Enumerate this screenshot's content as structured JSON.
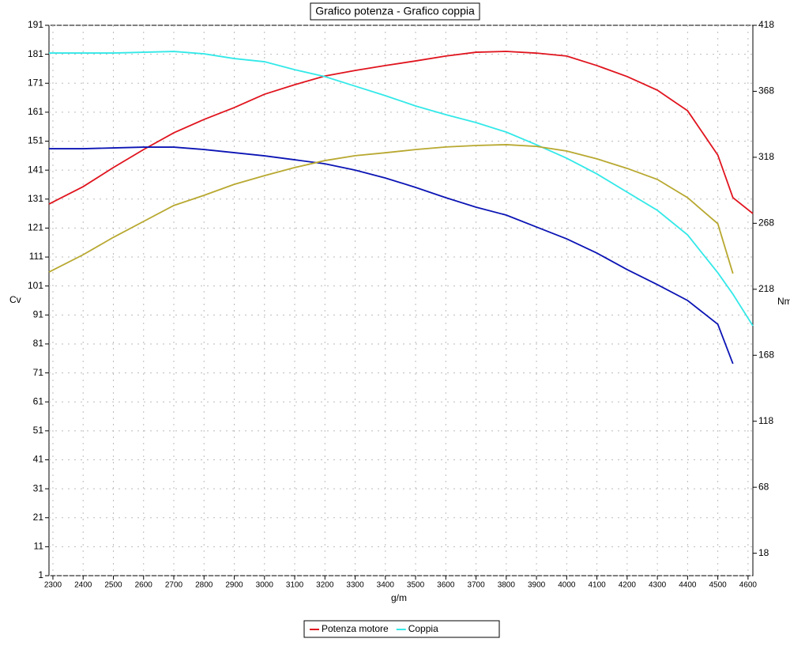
{
  "chart_data": {
    "type": "line",
    "title": "Grafico potenza - Grafico coppia",
    "xlabel": "g/m",
    "ylabel": "Cv",
    "y2label": "Nm",
    "x": [
      2287,
      2400,
      2500,
      2600,
      2700,
      2800,
      2900,
      3000,
      3100,
      3200,
      3300,
      3400,
      3500,
      3600,
      3700,
      3800,
      3900,
      4000,
      4100,
      4200,
      4300,
      4400,
      4500,
      4550,
      4616
    ],
    "series": [
      {
        "name": "Potenza motore",
        "color": "#e0141e",
        "axis": "y",
        "values": [
          129.3,
          135.3,
          141.9,
          148.1,
          153.9,
          158.5,
          162.6,
          167.2,
          170.5,
          173.5,
          175.4,
          177.1,
          178.7,
          180.4,
          181.7,
          182.0,
          181.4,
          180.4,
          177.1,
          173.3,
          168.6,
          161.5,
          146.2,
          131.5,
          126.0
        ]
      },
      {
        "name": "Coppia",
        "color": "#33e8e8",
        "axis": "y2",
        "values": [
          397.0,
          397.0,
          397.0,
          397.6,
          398.2,
          396.4,
          392.8,
          390.4,
          384.4,
          379.1,
          371.9,
          364.7,
          356.9,
          350.3,
          344.3,
          337.1,
          327.5,
          317.3,
          305.4,
          291.6,
          277.8,
          259.2,
          230.5,
          214.3,
          190.3
        ]
      },
      {
        "color": "#0b14b4",
        "axis": "y2",
        "values": [
          324.5,
          324.5,
          325.1,
          325.7,
          325.7,
          323.9,
          321.5,
          319.1,
          316.1,
          313.1,
          308.3,
          302.3,
          295.2,
          287.4,
          280.2,
          274.2,
          265.2,
          256.2,
          245.4,
          232.9,
          221.5,
          209.5,
          191.5,
          161.6,
          null
        ]
      },
      {
        "color": "#b8a830",
        "axis": "y",
        "values": [
          105.8,
          111.8,
          117.8,
          123.3,
          128.8,
          132.3,
          136.1,
          139.1,
          141.9,
          144.3,
          146.0,
          147.0,
          148.1,
          149.0,
          149.5,
          149.8,
          149.2,
          147.6,
          144.9,
          141.6,
          137.8,
          131.5,
          122.5,
          105.3,
          null
        ]
      }
    ],
    "xlim": [
      2287,
      4616
    ],
    "xticks": [
      2300,
      2400,
      2500,
      2600,
      2700,
      2800,
      2900,
      3000,
      3100,
      3200,
      3300,
      3400,
      3500,
      3600,
      3700,
      3800,
      3900,
      4000,
      4100,
      4200,
      4300,
      4400,
      4500,
      4600
    ],
    "ylim": [
      1,
      191
    ],
    "yticks": [
      1,
      11,
      21,
      31,
      41,
      51,
      61,
      71,
      81,
      91,
      101,
      111,
      121,
      131,
      141,
      151,
      161,
      171,
      181,
      191
    ],
    "y2lim": [
      1,
      418
    ],
    "y2ticks": [
      18,
      68,
      118,
      168,
      218,
      268,
      318,
      368,
      418
    ],
    "grid": true,
    "legend": "bottom"
  }
}
